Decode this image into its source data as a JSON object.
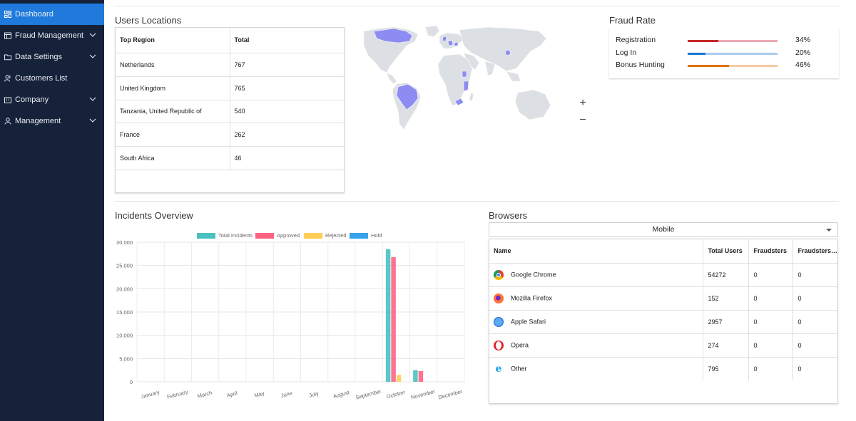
{
  "sidebar": {
    "items": [
      {
        "label": "Dashboard",
        "icon": "dashboard-icon",
        "active": true,
        "expandable": false
      },
      {
        "label": "Fraud Management",
        "icon": "fraud-icon",
        "expandable": true
      },
      {
        "label": "Data Settings",
        "icon": "folder-icon",
        "expandable": true
      },
      {
        "label": "Customers List",
        "icon": "users-icon",
        "expandable": false
      },
      {
        "label": "Company",
        "icon": "building-icon",
        "expandable": true
      },
      {
        "label": "Management",
        "icon": "user-icon",
        "expandable": true
      }
    ]
  },
  "users_locations": {
    "title": "Users Locations",
    "headers": [
      "Top Region",
      "Total"
    ],
    "rows": [
      [
        "Netherlands",
        "767"
      ],
      [
        "United Kingdom",
        "765"
      ],
      [
        "Tanzania, United Republic of",
        "540"
      ],
      [
        "France",
        "262"
      ],
      [
        "South Africa",
        "46"
      ]
    ],
    "zoom_in": "+",
    "zoom_out": "−"
  },
  "fraud_rate": {
    "title": "Fraud Rate",
    "rows": [
      {
        "label": "Registration",
        "value": "34%",
        "fraction": 0.34,
        "color": "#c62828",
        "track": "#eba9b3"
      },
      {
        "label": "Log In",
        "value": "20%",
        "fraction": 0.2,
        "color": "#1976d2",
        "track": "#a8cbef"
      },
      {
        "label": "Bonus Hunting",
        "value": "46%",
        "fraction": 0.46,
        "color": "#e07012",
        "track": "#f6c9a2"
      }
    ]
  },
  "incidents": {
    "title": "Incidents Overview"
  },
  "chart_data": {
    "type": "bar",
    "categories": [
      "January",
      "February",
      "March",
      "April",
      "May",
      "June",
      "July",
      "August",
      "September",
      "October",
      "November",
      "December"
    ],
    "series": [
      {
        "name": "Total Incidents",
        "color": "#4bc0c0",
        "values": [
          0,
          0,
          0,
          0,
          0,
          0,
          0,
          0,
          0,
          28500,
          2500,
          0
        ]
      },
      {
        "name": "Approved",
        "color": "#ff6384",
        "values": [
          0,
          0,
          0,
          0,
          0,
          0,
          0,
          0,
          0,
          26800,
          2300,
          0
        ]
      },
      {
        "name": "Rejected",
        "color": "#ffcd56",
        "values": [
          0,
          0,
          0,
          0,
          0,
          0,
          0,
          0,
          0,
          1500,
          0,
          0
        ]
      },
      {
        "name": "Hold",
        "color": "#36a2eb",
        "values": [
          0,
          0,
          0,
          0,
          0,
          0,
          0,
          0,
          0,
          0,
          0,
          0
        ]
      }
    ],
    "ylim": [
      0,
      30000
    ],
    "yticks": [
      "30,000",
      "25,000",
      "20,000",
      "15,000",
      "10,000",
      "5,000",
      "0"
    ],
    "legend": "top"
  },
  "browsers": {
    "title": "Browsers",
    "selected": "Mobile",
    "headers": [
      "Name",
      "Total Users",
      "Fraudsters",
      "Fraudsters…"
    ],
    "rows": [
      {
        "name": "Google Chrome",
        "icon": "chrome-icon",
        "total": "54272",
        "fraud": "0",
        "fraud2": "0"
      },
      {
        "name": "Mozilla Firefox",
        "icon": "firefox-icon",
        "total": "152",
        "fraud": "0",
        "fraud2": "0"
      },
      {
        "name": "Apple Safari",
        "icon": "safari-icon",
        "total": "2957",
        "fraud": "0",
        "fraud2": "0"
      },
      {
        "name": "Opera",
        "icon": "opera-icon",
        "total": "274",
        "fraud": "0",
        "fraud2": "0"
      },
      {
        "name": "Other",
        "icon": "ie-icon",
        "total": "795",
        "fraud": "0",
        "fraud2": "0"
      }
    ]
  }
}
